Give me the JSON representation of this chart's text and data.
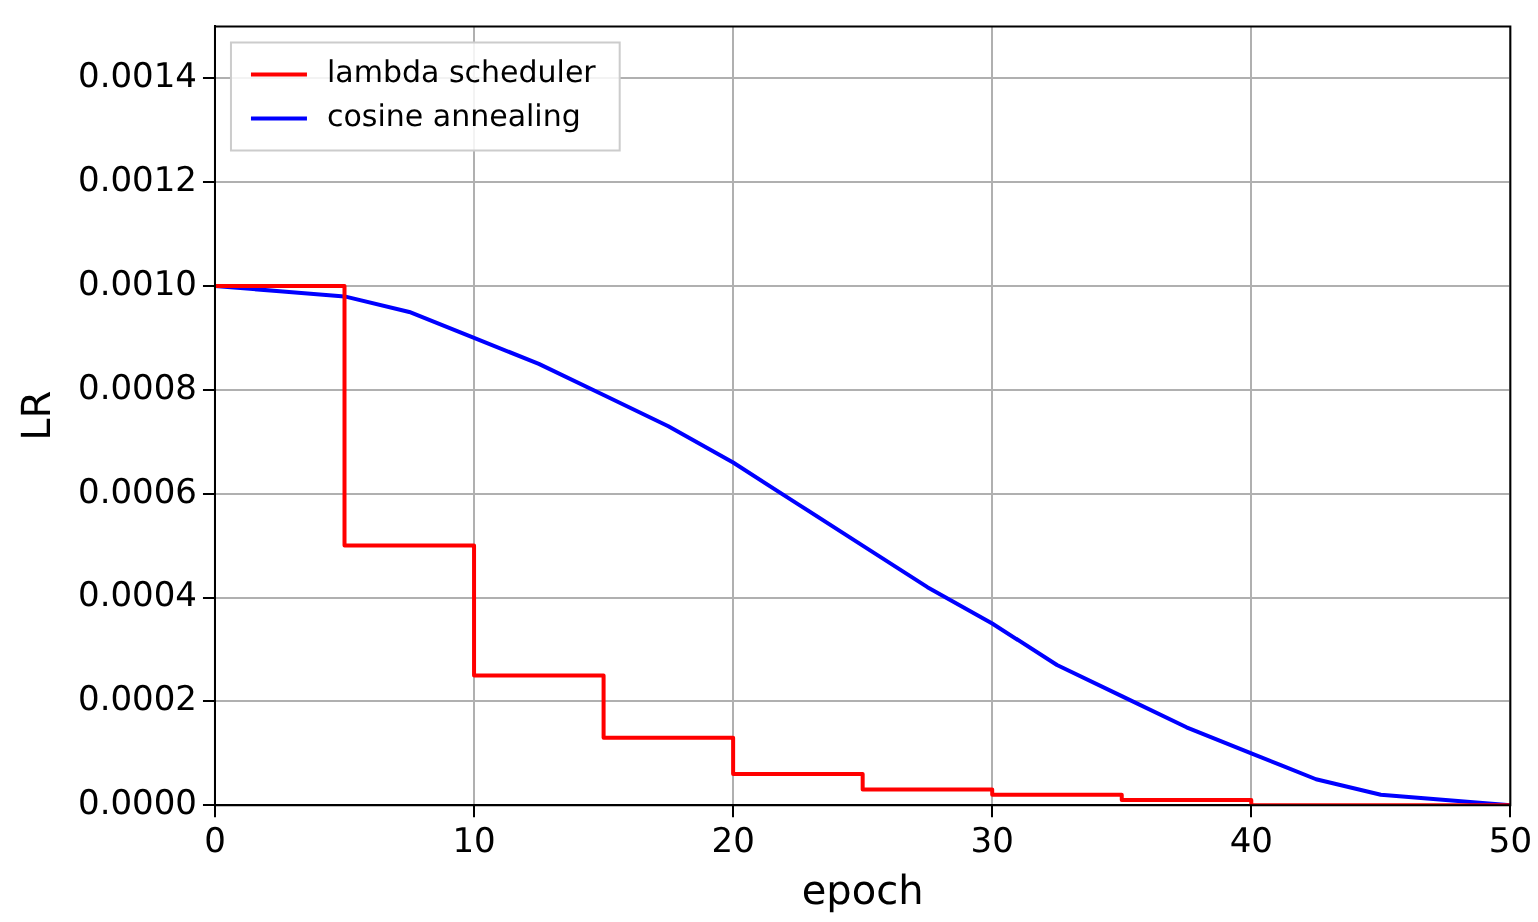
{
  "chart_data": {
    "type": "line",
    "xlabel": "epoch",
    "ylabel": "LR",
    "series": [
      {
        "name": "lambda scheduler",
        "type": "step",
        "color": "#ff0000",
        "x": [
          0,
          5,
          10,
          15,
          20,
          25,
          30,
          35,
          40,
          45,
          50
        ],
        "values": [
          0.001,
          0.0005,
          0.00025,
          0.00013,
          6e-05,
          3e-05,
          2e-05,
          1e-05,
          0,
          0,
          0
        ]
      },
      {
        "name": "cosine annealing",
        "type": "line",
        "color": "#0000ff",
        "x": [
          0,
          2.5,
          5,
          7.5,
          10,
          12.5,
          15,
          17.5,
          20,
          22.5,
          25,
          27.5,
          30,
          32.5,
          35,
          37.5,
          40,
          42.5,
          45,
          47.5,
          50
        ],
        "values": [
          0.001,
          0.00099,
          0.00098,
          0.00095,
          0.0009,
          0.00085,
          0.00079,
          0.00073,
          0.00066,
          0.00058,
          0.0005,
          0.00042,
          0.00035,
          0.00027,
          0.00021,
          0.00015,
          0.0001,
          5e-05,
          2e-05,
          1e-05,
          0
        ]
      }
    ],
    "xlim": [
      0,
      50
    ],
    "xticks": [
      0,
      10,
      20,
      30,
      40,
      50
    ],
    "ylim": [
      0,
      0.0015
    ],
    "yticks": [
      {
        "value": 0,
        "label": "0.0000"
      },
      {
        "value": 0.0002,
        "label": "0.0002"
      },
      {
        "value": 0.0004,
        "label": "0.0004"
      },
      {
        "value": 0.0006,
        "label": "0.0006"
      },
      {
        "value": 0.0008,
        "label": "0.0008"
      },
      {
        "value": 0.001,
        "label": "0.0010"
      },
      {
        "value": 0.0012,
        "label": "0.0012"
      },
      {
        "value": 0.0014,
        "label": "0.0014"
      }
    ],
    "grid": true,
    "legend": "top left",
    "marker": "none",
    "line_style": "solid"
  }
}
